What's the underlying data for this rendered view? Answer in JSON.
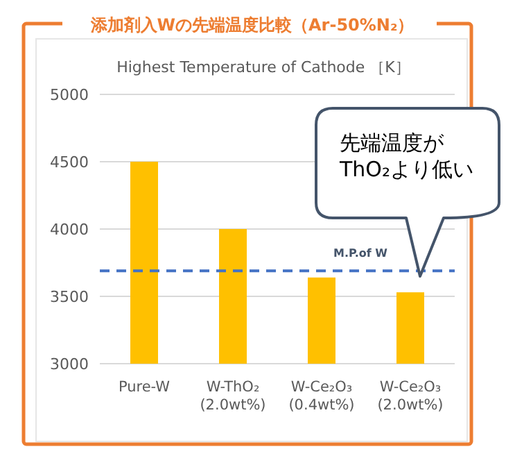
{
  "chart_data": {
    "type": "bar",
    "title": "添加剤入Wの先端温度比較（Ar-50%N₂）",
    "subtitle": "Highest Temperature of Cathode ［K］",
    "categories": [
      "Pure-W",
      "W-ThO₂\n(2.0wt%)",
      "W-Ce₂O₃\n(0.4wt%)",
      "W-Ce₂O₃\n(2.0wt%)"
    ],
    "values": [
      4500,
      4000,
      3640,
      3530
    ],
    "color": "#ffc000",
    "ylim": [
      3000,
      5000
    ],
    "yticks": [
      3000,
      3500,
      4000,
      4500,
      5000
    ],
    "grid": "y",
    "ref_lines": [
      {
        "axis": "y",
        "value": 3690,
        "label": "M.P.of W",
        "color": "#4472c4",
        "line_style": "dashed"
      }
    ],
    "annotations": [
      "先端温度が\nThO₂より低い"
    ]
  }
}
